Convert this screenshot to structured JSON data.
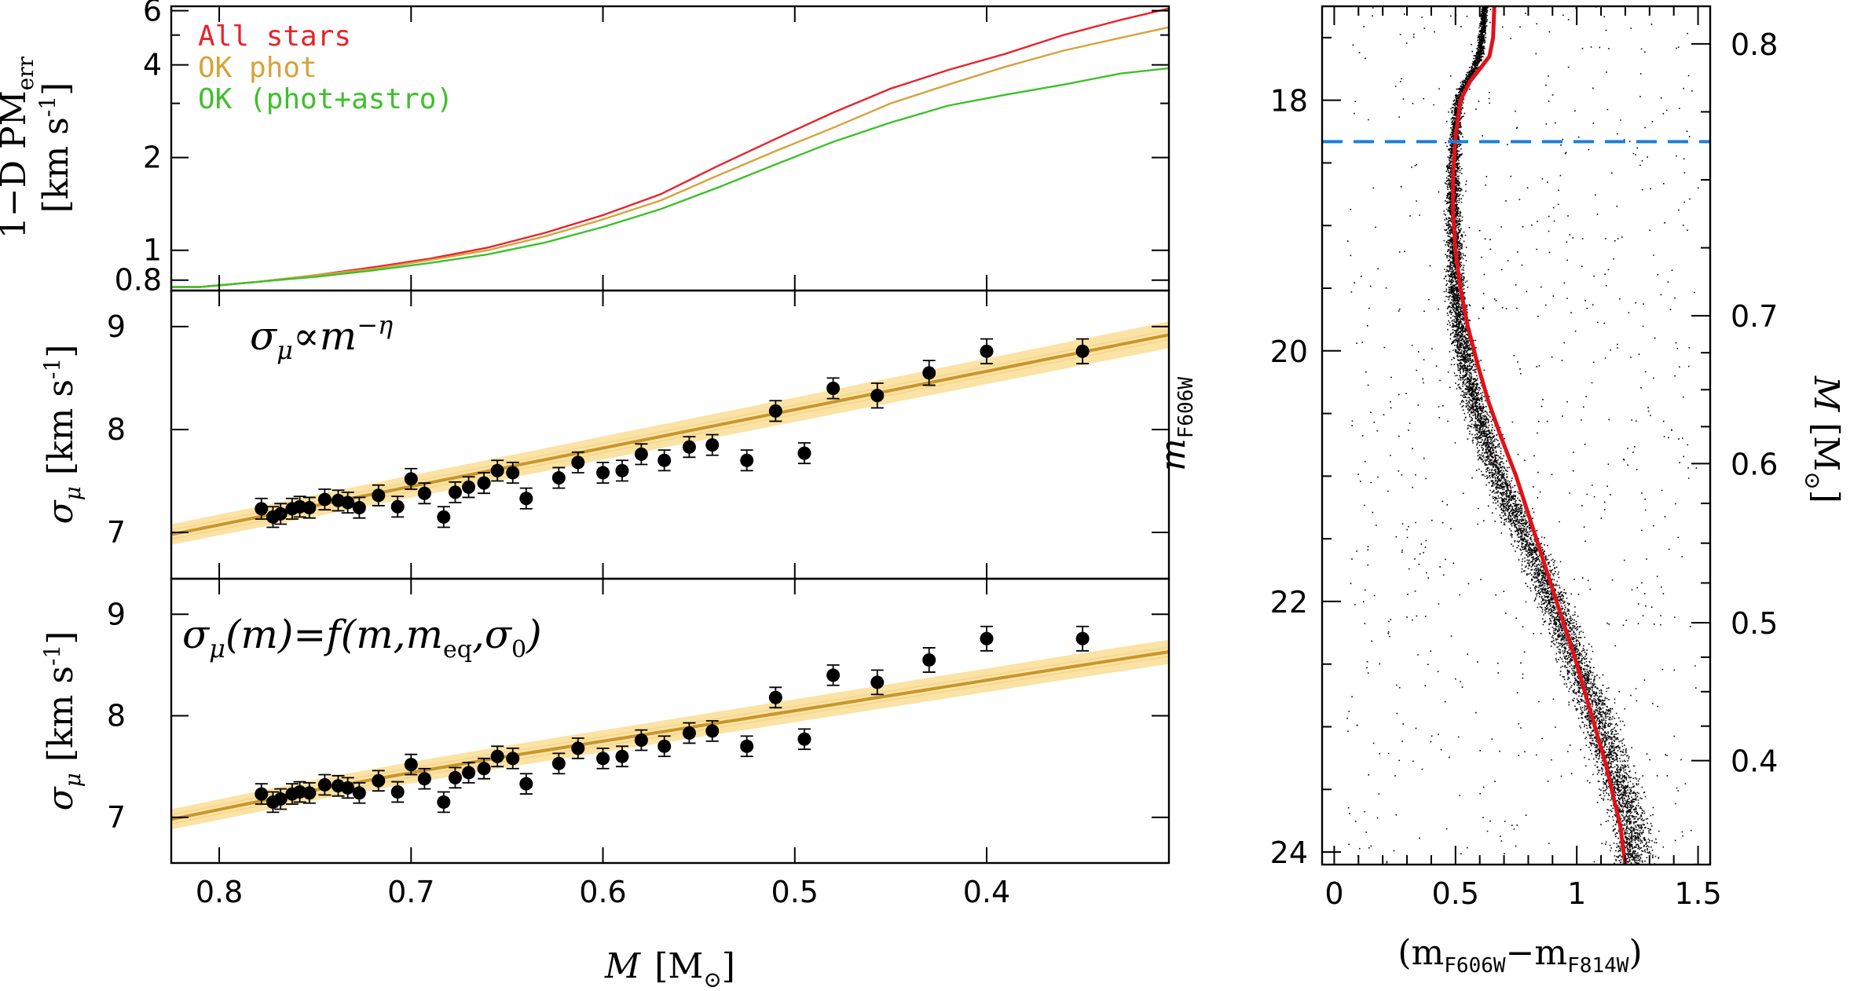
{
  "colors": {
    "all_stars": "#e8232a",
    "ok_phot": "#d7a23c",
    "ok_phot_astro": "#3fbf2c",
    "model": "#c9952c",
    "band": "#fbe3a5",
    "isochrone": "#e0121a",
    "cut_line": "#1a7fe0",
    "points": "#000000"
  },
  "chart_data": [
    {
      "id": "pm_errors",
      "type": "line",
      "ylabel_main": "1−D PM",
      "ylabel_sub": "err",
      "ylabel_units": "[km s",
      "ylabel_units_sup": "-1",
      "ylabel_units_end": "]",
      "xlim": [
        0.825,
        0.305
      ],
      "ylim_log": [
        0.74,
        6.2
      ],
      "yticks": [
        0.8,
        1,
        2,
        4,
        6
      ],
      "ytick_labels": [
        "0.8",
        "1",
        "2",
        "4",
        "6"
      ],
      "x": [
        0.825,
        0.81,
        0.78,
        0.75,
        0.72,
        0.69,
        0.66,
        0.63,
        0.6,
        0.57,
        0.54,
        0.51,
        0.48,
        0.45,
        0.42,
        0.39,
        0.36,
        0.33,
        0.305
      ],
      "series": [
        {
          "name": "All stars",
          "color_key": "all_stars",
          "values": [
            0.76,
            0.76,
            0.79,
            0.83,
            0.88,
            0.94,
            1.02,
            1.14,
            1.3,
            1.52,
            1.88,
            2.3,
            2.8,
            3.35,
            3.85,
            4.35,
            5.0,
            5.6,
            6.1
          ]
        },
        {
          "name": "OK phot",
          "color_key": "ok_phot",
          "values": [
            0.76,
            0.76,
            0.79,
            0.83,
            0.87,
            0.93,
            1.0,
            1.11,
            1.26,
            1.45,
            1.75,
            2.1,
            2.5,
            3.0,
            3.45,
            3.95,
            4.45,
            4.9,
            5.3
          ]
        },
        {
          "name": "OK (phot+astro)",
          "color_key": "ok_phot_astro",
          "values": [
            0.76,
            0.76,
            0.79,
            0.82,
            0.86,
            0.91,
            0.97,
            1.06,
            1.19,
            1.36,
            1.6,
            1.9,
            2.25,
            2.6,
            2.95,
            3.2,
            3.45,
            3.75,
            3.9
          ]
        }
      ]
    },
    {
      "id": "power_law_fit",
      "type": "scatter",
      "annotation": "σ",
      "annotation_sub": "μ",
      "annotation_rest": "∝m",
      "annotation_sup": "−η",
      "ylabel": "σ",
      "ylabel_sub": "μ",
      "ylabel_units": "[km s",
      "ylabel_units_sup": "-1",
      "ylabel_units_end": "]",
      "xlim": [
        0.825,
        0.305
      ],
      "ylim": [
        6.55,
        9.35
      ],
      "yticks": [
        7,
        8,
        9
      ],
      "ytick_labels": [
        "7",
        "8",
        "9"
      ],
      "x": [
        0.778,
        0.772,
        0.768,
        0.762,
        0.758,
        0.753,
        0.745,
        0.738,
        0.733,
        0.727,
        0.717,
        0.707,
        0.7,
        0.693,
        0.683,
        0.677,
        0.67,
        0.662,
        0.655,
        0.647,
        0.64,
        0.623,
        0.613,
        0.6,
        0.59,
        0.58,
        0.568,
        0.555,
        0.543,
        0.525,
        0.51,
        0.495,
        0.48,
        0.457,
        0.43,
        0.4,
        0.35
      ],
      "values": [
        7.23,
        7.15,
        7.18,
        7.23,
        7.25,
        7.24,
        7.32,
        7.31,
        7.29,
        7.24,
        7.36,
        7.25,
        7.52,
        7.38,
        7.15,
        7.39,
        7.44,
        7.48,
        7.6,
        7.58,
        7.33,
        7.53,
        7.68,
        7.58,
        7.6,
        7.76,
        7.7,
        7.83,
        7.85,
        7.7,
        8.18,
        7.77,
        8.4,
        8.33,
        8.55,
        8.76,
        8.76
      ],
      "errors": [
        0.1,
        0.1,
        0.1,
        0.1,
        0.1,
        0.1,
        0.1,
        0.1,
        0.1,
        0.1,
        0.1,
        0.1,
        0.1,
        0.1,
        0.1,
        0.1,
        0.1,
        0.1,
        0.1,
        0.1,
        0.1,
        0.1,
        0.1,
        0.1,
        0.1,
        0.1,
        0.1,
        0.1,
        0.1,
        0.1,
        0.1,
        0.1,
        0.1,
        0.12,
        0.12,
        0.12,
        0.12
      ],
      "model_x": [
        0.825,
        0.305
      ],
      "model_y": [
        6.98,
        8.92
      ],
      "band_halfwidth": [
        0.1,
        0.13
      ]
    },
    {
      "id": "equipartition_fit",
      "type": "scatter",
      "annotation": "σ",
      "annotation_sub": "μ",
      "annotation_rest": "(m)=f(m,m",
      "annotation_sub2": "eq",
      "annotation_rest2": ",σ",
      "annotation_sub3": "0",
      "annotation_rest3": ")",
      "ylabel": "σ",
      "ylabel_sub": "μ",
      "ylabel_units": "[km s",
      "ylabel_units_sup": "-1",
      "ylabel_units_end": "]",
      "xlabel": "M",
      "xlabel_units": "[M",
      "xlabel_units_sub": "⊙",
      "xlabel_units_end": "]",
      "xlim": [
        0.825,
        0.305
      ],
      "ylim": [
        6.55,
        9.35
      ],
      "yticks": [
        7,
        8,
        9
      ],
      "ytick_labels": [
        "7",
        "8",
        "9"
      ],
      "xticks": [
        0.8,
        0.7,
        0.6,
        0.5,
        0.4
      ],
      "xtick_labels": [
        "0.8",
        "0.7",
        "0.6",
        "0.5",
        "0.4"
      ],
      "x": [
        0.778,
        0.772,
        0.768,
        0.762,
        0.758,
        0.753,
        0.745,
        0.738,
        0.733,
        0.727,
        0.717,
        0.707,
        0.7,
        0.693,
        0.683,
        0.677,
        0.67,
        0.662,
        0.655,
        0.647,
        0.64,
        0.623,
        0.613,
        0.6,
        0.59,
        0.58,
        0.568,
        0.555,
        0.543,
        0.525,
        0.51,
        0.495,
        0.48,
        0.457,
        0.43,
        0.4,
        0.35
      ],
      "values": [
        7.23,
        7.15,
        7.18,
        7.23,
        7.25,
        7.24,
        7.32,
        7.31,
        7.29,
        7.24,
        7.36,
        7.25,
        7.52,
        7.38,
        7.15,
        7.39,
        7.44,
        7.48,
        7.6,
        7.58,
        7.33,
        7.53,
        7.68,
        7.58,
        7.6,
        7.76,
        7.7,
        7.83,
        7.85,
        7.7,
        8.18,
        7.77,
        8.4,
        8.33,
        8.55,
        8.76,
        8.76
      ],
      "errors": [
        0.1,
        0.1,
        0.1,
        0.1,
        0.1,
        0.1,
        0.1,
        0.1,
        0.1,
        0.1,
        0.1,
        0.1,
        0.1,
        0.1,
        0.1,
        0.1,
        0.1,
        0.1,
        0.1,
        0.1,
        0.1,
        0.1,
        0.1,
        0.1,
        0.1,
        0.1,
        0.1,
        0.1,
        0.1,
        0.1,
        0.1,
        0.1,
        0.1,
        0.12,
        0.12,
        0.12,
        0.12
      ],
      "model_x": [
        0.825,
        0.75,
        0.7,
        0.65,
        0.6,
        0.55,
        0.5,
        0.45,
        0.4,
        0.35,
        0.305
      ],
      "model_y": [
        6.98,
        7.27,
        7.44,
        7.6,
        7.75,
        7.9,
        8.05,
        8.2,
        8.35,
        8.5,
        8.63
      ],
      "band_halfwidth": [
        0.1,
        0.12
      ]
    },
    {
      "id": "cmd",
      "type": "scatter",
      "ylabel": "m",
      "ylabel_sub": "F606W",
      "xlabel_open": "(m",
      "xlabel_sub1": "F606W",
      "xlabel_mid": "−m",
      "xlabel_sub2": "F814W",
      "xlabel_close": ")",
      "right_ylabel": "M",
      "right_ylabel_units": "[M",
      "right_ylabel_units_sub": "⊙",
      "right_ylabel_units_end": "]",
      "xlim": [
        -0.05,
        1.55
      ],
      "ylim": [
        24.1,
        17.25
      ],
      "xticks": [
        0,
        0.5,
        1,
        1.5
      ],
      "xtick_labels": [
        "0",
        "0.5",
        "1",
        "1.5"
      ],
      "yticks": [
        18,
        20,
        22,
        24
      ],
      "ytick_labels": [
        "18",
        "20",
        "22",
        "24"
      ],
      "right_ticks_mag": [
        17.55,
        19.72,
        20.9,
        22.17,
        23.27
      ],
      "right_tick_labels": [
        "0.8",
        "0.7",
        "0.6",
        "0.5",
        "0.4"
      ],
      "mass_cut_mag": 18.33,
      "ridge_color": [
        0.62,
        0.6,
        0.575,
        0.54,
        0.51,
        0.495,
        0.49,
        0.49,
        0.495,
        0.5,
        0.515,
        0.54,
        0.575,
        0.62,
        0.675,
        0.74,
        0.82,
        0.9,
        0.98,
        1.06,
        1.15,
        1.23
      ],
      "ridge_mag": [
        17.25,
        17.6,
        17.75,
        17.85,
        18.0,
        18.3,
        18.6,
        18.9,
        19.2,
        19.5,
        19.8,
        20.1,
        20.4,
        20.7,
        21.0,
        21.3,
        21.6,
        22.0,
        22.4,
        22.8,
        23.3,
        23.8
      ],
      "isochrone_color": [
        0.66,
        0.655,
        0.64,
        0.6,
        0.56,
        0.52,
        0.5,
        0.49,
        0.49,
        0.5,
        0.52,
        0.55,
        0.59,
        0.635,
        0.69,
        0.75,
        0.8,
        0.85,
        0.9,
        0.95,
        1.0,
        1.06,
        1.12,
        1.18,
        1.2
      ],
      "isochrone_mag": [
        17.25,
        17.5,
        17.65,
        17.75,
        17.85,
        18.0,
        18.3,
        18.6,
        18.9,
        19.2,
        19.5,
        19.8,
        20.1,
        20.4,
        20.7,
        21.0,
        21.3,
        21.6,
        21.9,
        22.2,
        22.5,
        22.9,
        23.3,
        23.8,
        24.1
      ]
    }
  ]
}
